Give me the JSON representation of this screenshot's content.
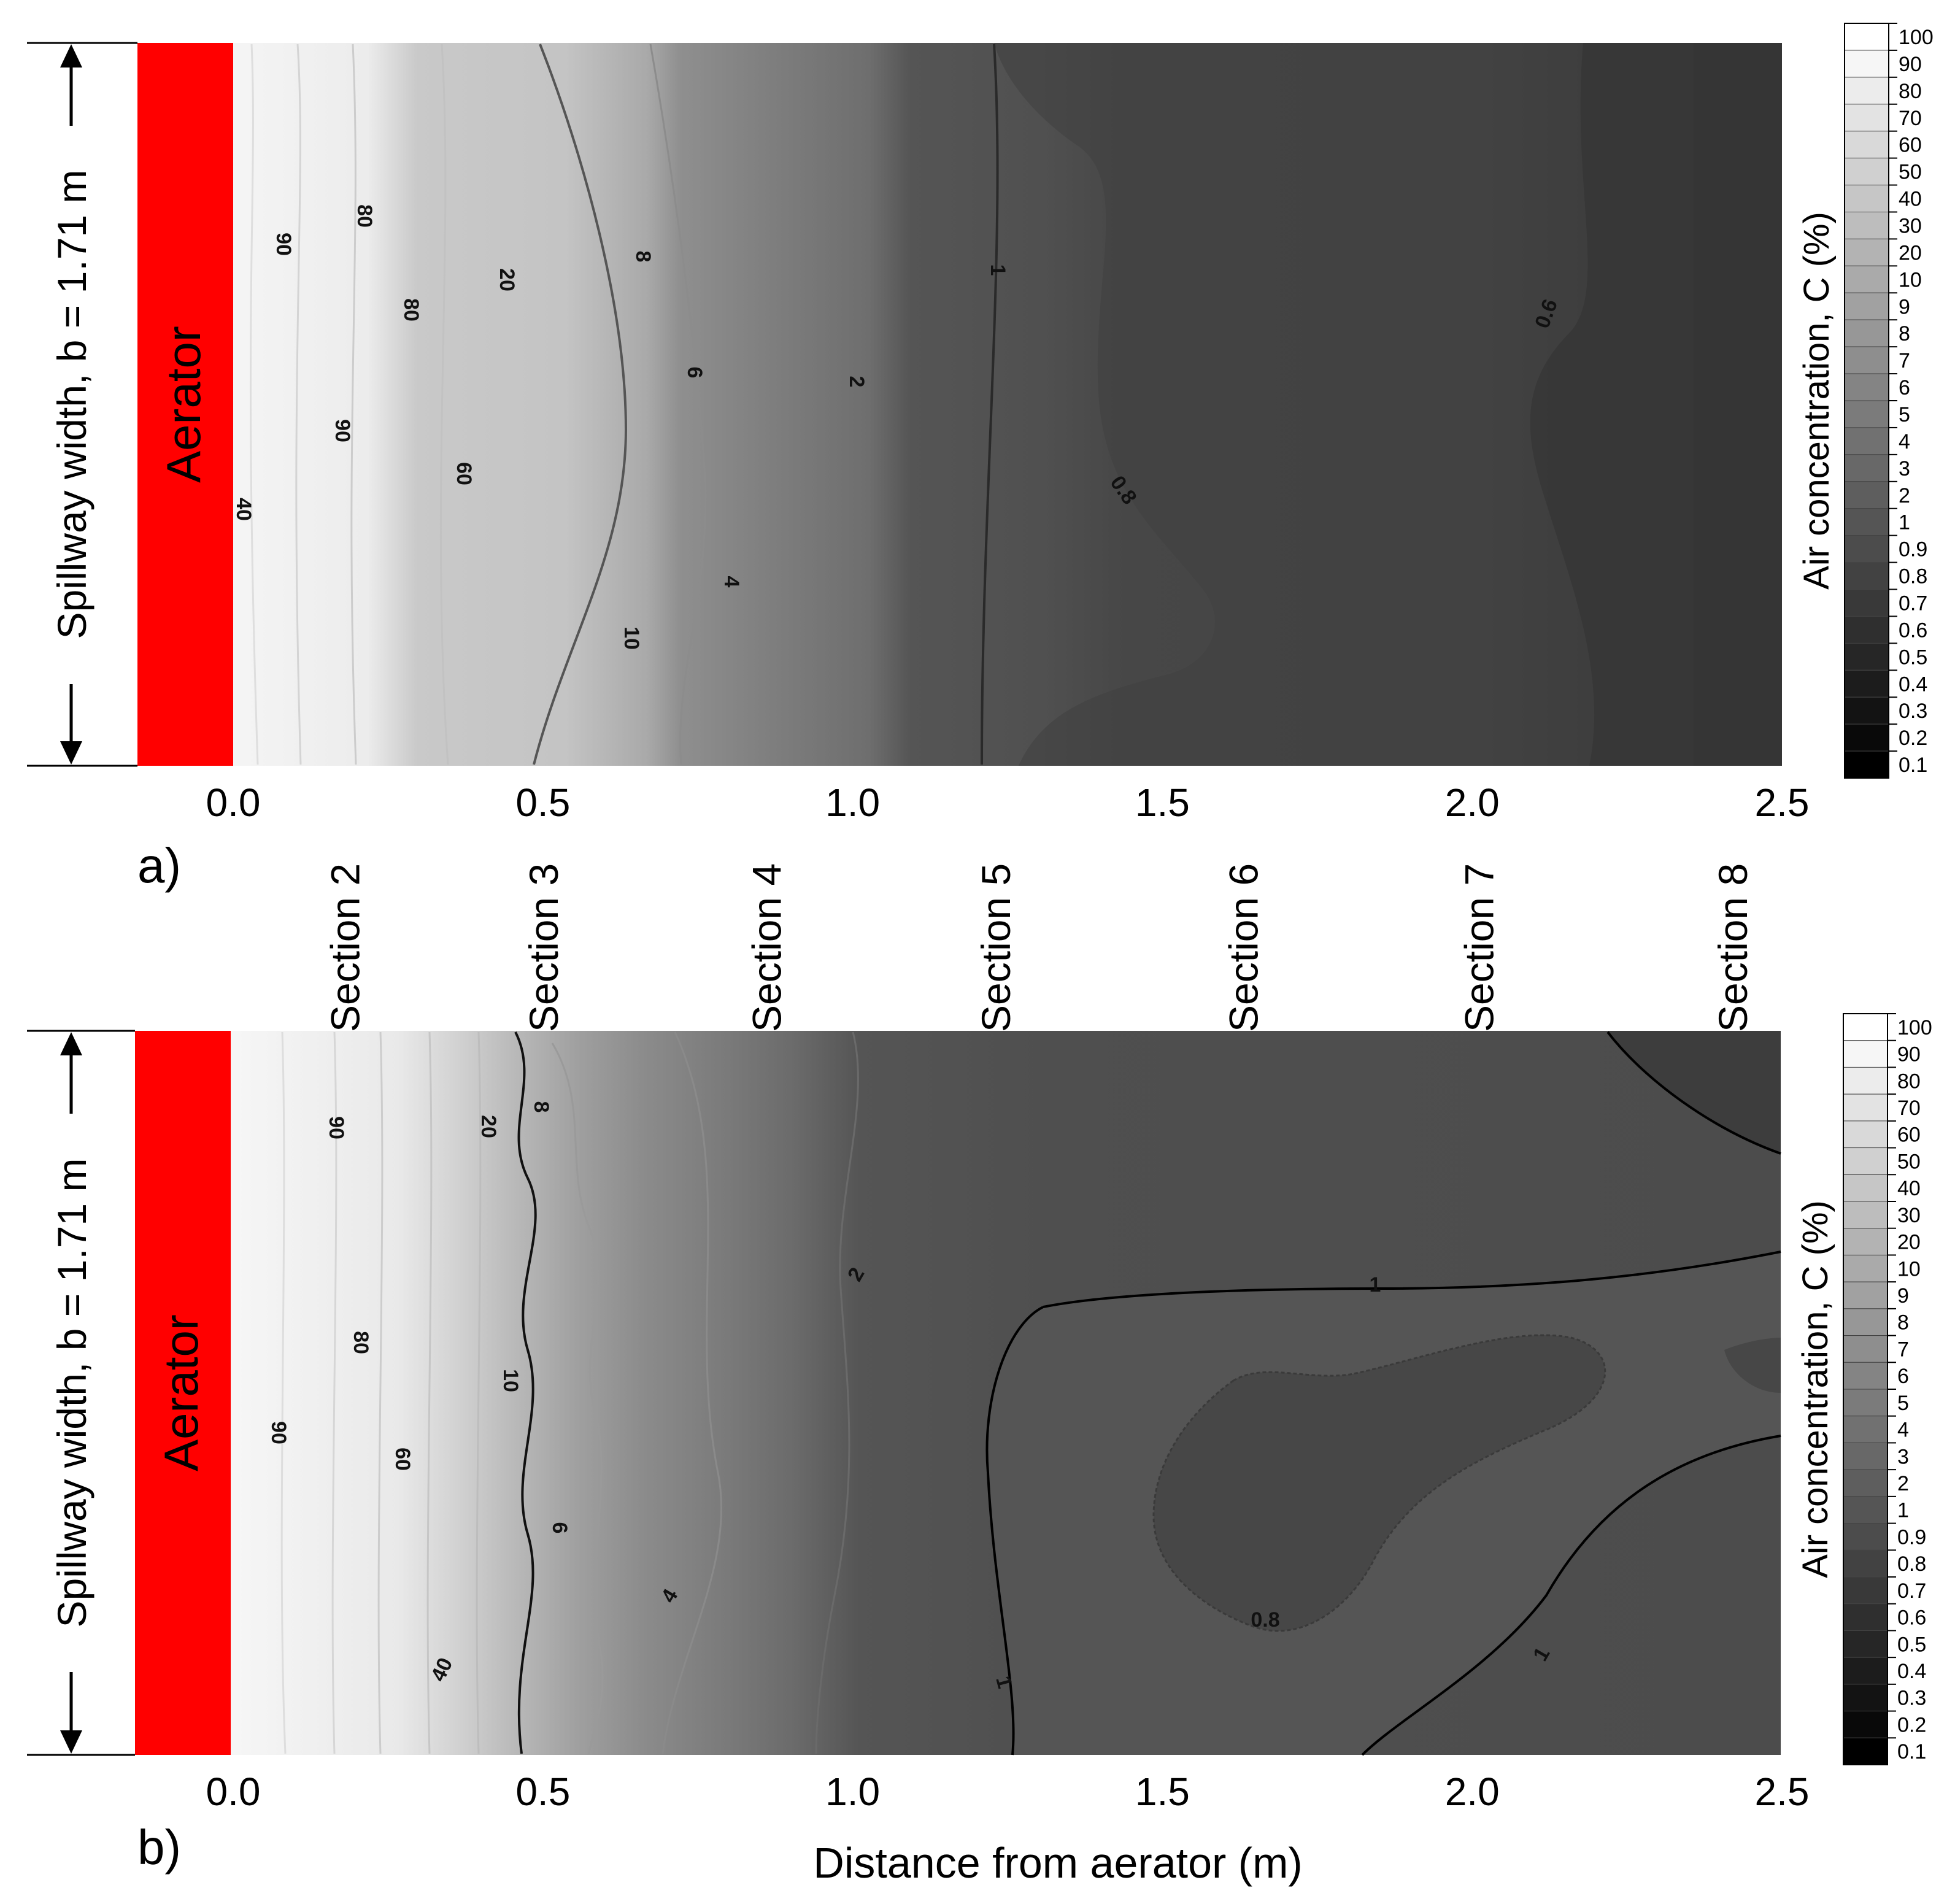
{
  "figure": {
    "xlabel": "Distance from aerator (m)",
    "colorbar_label": "Air concentration, C (%)",
    "aerator_label": "Aerator",
    "width_label": "Spillway width, b = 1.71 m",
    "panel_labels": [
      "a)",
      "b)"
    ],
    "sections": [
      "Section 2",
      "Section 3",
      "Section 4",
      "Section 5",
      "Section 6",
      "Section 7",
      "Section 8"
    ],
    "colors": {
      "aerator": "#ff0000",
      "background": "#ffffff",
      "dark": "#000000",
      "light": "#ffffff"
    }
  },
  "chart_data": [
    {
      "type": "heatmap",
      "panel": "a)",
      "xlabel": "",
      "ylabel": "Spillway width, b = 1.71 m",
      "xlim": [
        -0.16,
        2.5
      ],
      "x_ticks": [
        "0.0",
        "0.5",
        "1.0",
        "1.5",
        "2.0",
        "2.5"
      ],
      "colorbar": {
        "label": "Air concentration, C (%)",
        "levels": [
          "100",
          "90",
          "80",
          "70",
          "60",
          "50",
          "40",
          "30",
          "20",
          "10",
          "9",
          "8",
          "7",
          "6",
          "5",
          "4",
          "3",
          "2",
          "1",
          "0.9",
          "0.8",
          "0.7",
          "0.6",
          "0.5",
          "0.4",
          "0.3",
          "0.2",
          "0.1"
        ]
      },
      "contour_labels": [
        "90",
        "80",
        "80",
        "90",
        "60",
        "40",
        "20",
        "10",
        "8",
        "6",
        "4",
        "2",
        "1",
        "0.8",
        "0.6"
      ],
      "sections_x": [
        0.18,
        0.5,
        0.86,
        1.23,
        1.63,
        2.01,
        2.42
      ],
      "profile": {
        "x": [
          0.0,
          0.1,
          0.2,
          0.3,
          0.4,
          0.5,
          0.6,
          0.7,
          0.8,
          1.0,
          1.25,
          1.5,
          2.0,
          2.2,
          2.5
        ],
        "C": [
          100,
          90,
          80,
          60,
          30,
          20,
          10,
          7,
          4,
          2,
          1,
          0.8,
          0.7,
          0.6,
          0.5
        ]
      }
    },
    {
      "type": "heatmap",
      "panel": "b)",
      "xlabel": "Distance from aerator (m)",
      "ylabel": "Spillway width, b = 1.71 m",
      "xlim": [
        -0.16,
        2.5
      ],
      "x_ticks": [
        "0.0",
        "0.5",
        "1.0",
        "1.5",
        "2.0",
        "2.5"
      ],
      "colorbar": {
        "label": "Air concentration, C (%)",
        "levels": [
          "100",
          "90",
          "80",
          "70",
          "60",
          "50",
          "40",
          "30",
          "20",
          "10",
          "9",
          "8",
          "7",
          "6",
          "5",
          "4",
          "3",
          "2",
          "1",
          "0.9",
          "0.8",
          "0.7",
          "0.6",
          "0.5",
          "0.4",
          "0.3",
          "0.2",
          "0.1"
        ]
      },
      "contour_labels": [
        "90",
        "90",
        "80",
        "60",
        "40",
        "20",
        "10",
        "8",
        "6",
        "4",
        "2",
        "1",
        "1",
        "1",
        "0.8"
      ],
      "profile": {
        "x": [
          0.0,
          0.1,
          0.2,
          0.3,
          0.4,
          0.45,
          0.55,
          0.7,
          0.85,
          1.0,
          1.25,
          1.5,
          2.0,
          2.5
        ],
        "C": [
          100,
          90,
          80,
          60,
          35,
          20,
          8,
          5,
          3,
          2,
          1.2,
          0.8,
          0.8,
          1
        ]
      }
    }
  ]
}
